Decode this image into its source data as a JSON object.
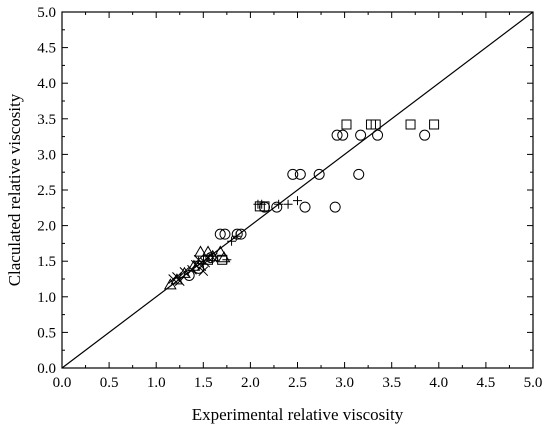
{
  "chart_data": {
    "type": "scatter",
    "xlabel": "Experimental relative viscosity",
    "ylabel": "Claculated relative viscosity",
    "xlim": [
      0.0,
      5.0
    ],
    "ylim": [
      0.0,
      5.0
    ],
    "x_ticks": [
      "0.0",
      "0.5",
      "1.0",
      "1.5",
      "2.0",
      "2.5",
      "3.0",
      "3.5",
      "4.0",
      "4.5",
      "5.0"
    ],
    "y_ticks": [
      "0.0",
      "0.5",
      "1.0",
      "1.5",
      "2.0",
      "2.5",
      "3.0",
      "3.5",
      "4.0",
      "4.5",
      "5.0"
    ],
    "grid": false,
    "legend": "none",
    "reference_line": {
      "x": [
        0.0,
        5.0
      ],
      "y": [
        0.0,
        5.0
      ]
    },
    "marker_color": "#000000",
    "series": [
      {
        "marker": "square",
        "points": [
          [
            2.1,
            2.27
          ],
          [
            2.15,
            2.27
          ],
          [
            3.02,
            3.42
          ],
          [
            3.28,
            3.42
          ],
          [
            3.33,
            3.42
          ],
          [
            3.7,
            3.42
          ],
          [
            3.95,
            3.42
          ],
          [
            1.55,
            1.52
          ],
          [
            1.7,
            1.52
          ]
        ]
      },
      {
        "marker": "circle",
        "points": [
          [
            1.35,
            1.3
          ],
          [
            1.45,
            1.4
          ],
          [
            1.58,
            1.55
          ],
          [
            1.68,
            1.88
          ],
          [
            1.73,
            1.88
          ],
          [
            1.86,
            1.88
          ],
          [
            1.9,
            1.88
          ],
          [
            2.15,
            2.26
          ],
          [
            2.28,
            2.26
          ],
          [
            2.45,
            2.72
          ],
          [
            2.53,
            2.72
          ],
          [
            2.58,
            2.26
          ],
          [
            2.73,
            2.72
          ],
          [
            2.9,
            2.26
          ],
          [
            2.92,
            3.27
          ],
          [
            2.98,
            3.27
          ],
          [
            3.15,
            2.72
          ],
          [
            3.17,
            3.27
          ],
          [
            3.35,
            3.27
          ],
          [
            3.85,
            3.27
          ]
        ]
      },
      {
        "marker": "triangle",
        "points": [
          [
            1.15,
            1.17
          ],
          [
            1.22,
            1.24
          ],
          [
            1.3,
            1.33
          ],
          [
            1.4,
            1.43
          ],
          [
            1.47,
            1.63
          ],
          [
            1.55,
            1.63
          ],
          [
            1.6,
            1.57
          ],
          [
            1.68,
            1.63
          ],
          [
            1.72,
            1.55
          ]
        ]
      },
      {
        "marker": "plus",
        "points": [
          [
            1.75,
            1.52
          ],
          [
            1.8,
            1.78
          ],
          [
            1.85,
            1.85
          ],
          [
            2.08,
            2.3
          ],
          [
            2.12,
            2.3
          ],
          [
            2.3,
            2.3
          ],
          [
            2.4,
            2.3
          ],
          [
            2.5,
            2.35
          ],
          [
            1.45,
            1.5
          ],
          [
            1.5,
            1.46
          ]
        ]
      },
      {
        "marker": "cross",
        "points": [
          [
            1.18,
            1.25
          ],
          [
            1.22,
            1.28
          ],
          [
            1.25,
            1.22
          ],
          [
            1.3,
            1.35
          ],
          [
            1.38,
            1.38
          ],
          [
            1.42,
            1.45
          ],
          [
            1.45,
            1.52
          ],
          [
            1.48,
            1.43
          ],
          [
            1.5,
            1.36
          ],
          [
            1.52,
            1.48
          ],
          [
            1.55,
            1.55
          ],
          [
            1.6,
            1.55
          ]
        ]
      }
    ]
  }
}
